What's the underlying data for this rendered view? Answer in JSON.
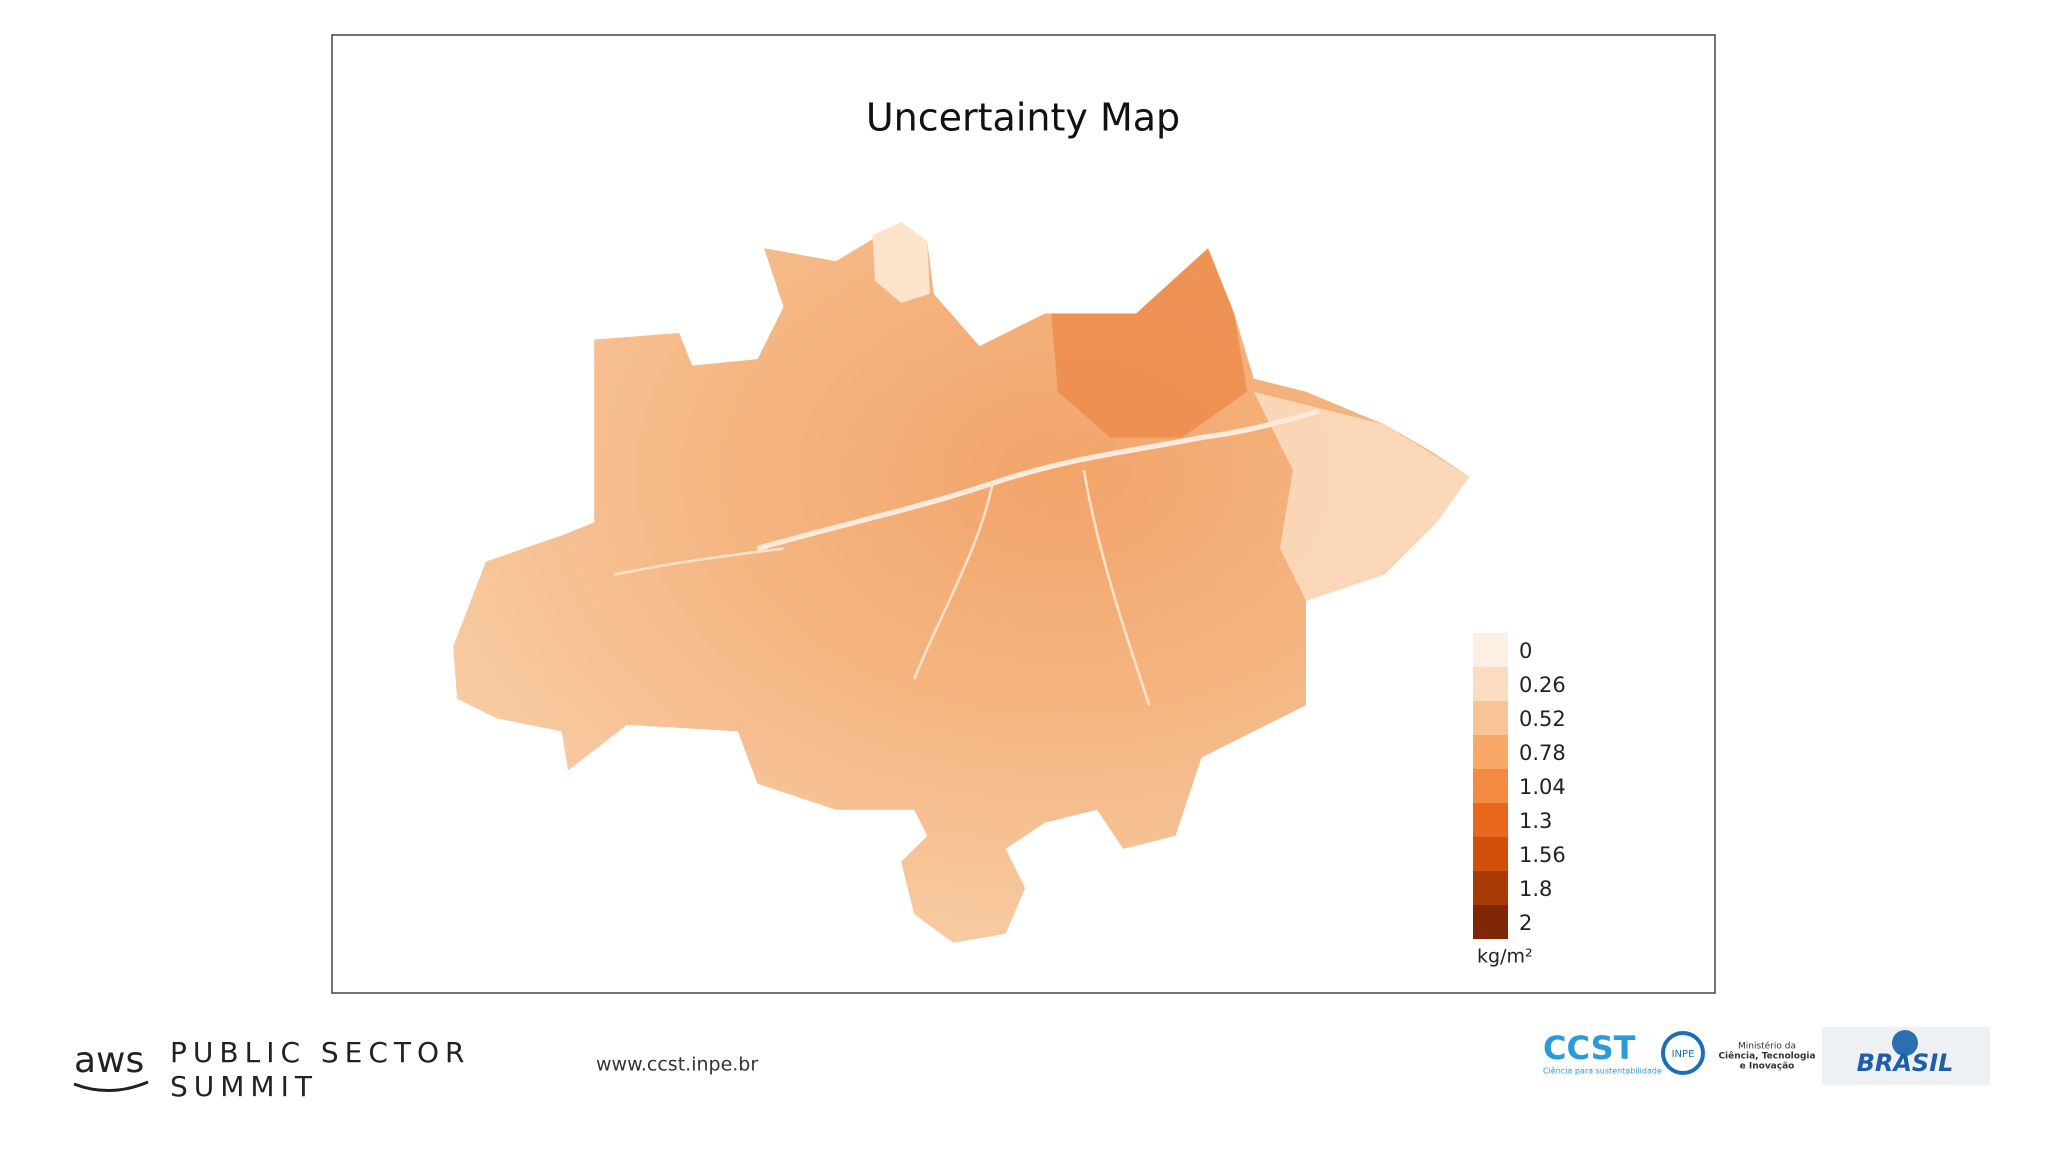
{
  "title": "Uncertainty Map",
  "legend": {
    "items": [
      {
        "value": 0,
        "color": "#fdf0e2"
      },
      {
        "value": 0.26,
        "color": "#fbdcc0"
      },
      {
        "value": 0.52,
        "color": "#f9c495"
      },
      {
        "value": 0.78,
        "color": "#f7a867"
      },
      {
        "value": 1.04,
        "color": "#f38b42"
      },
      {
        "value": 1.3,
        "color": "#e9671c"
      },
      {
        "value": 1.56,
        "color": "#d0500c"
      },
      {
        "value": 1.8,
        "color": "#a83a06"
      },
      {
        "value": 2,
        "color": "#7f2704"
      }
    ],
    "unit": "kg/m²"
  },
  "footer": {
    "brand": "aws",
    "event": [
      "PUBLIC SECTOR",
      "SUMMIT"
    ],
    "url": "www.ccst.inpe.br",
    "logos": {
      "ccst": "CCST",
      "ccst_tagline": "Ciência para sustentabilidade",
      "inpe": "INPE",
      "ministry": [
        "Ministério da",
        "Ciência, Tecnologia",
        "e Inovação"
      ],
      "brasil": "BRASIL"
    }
  }
}
